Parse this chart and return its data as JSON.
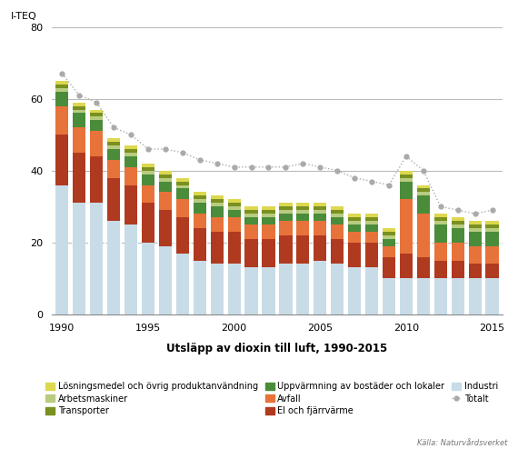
{
  "years": [
    1990,
    1991,
    1992,
    1993,
    1994,
    1995,
    1996,
    1997,
    1998,
    1999,
    2000,
    2001,
    2002,
    2003,
    2004,
    2005,
    2006,
    2007,
    2008,
    2009,
    2010,
    2011,
    2012,
    2013,
    2014,
    2015
  ],
  "industri": [
    36,
    31,
    31,
    26,
    25,
    20,
    19,
    17,
    15,
    14,
    14,
    13,
    13,
    14,
    14,
    15,
    14,
    13,
    13,
    10,
    10,
    10,
    10,
    10,
    10,
    10
  ],
  "el_fjarrvarme": [
    14,
    14,
    13,
    12,
    11,
    11,
    10,
    10,
    9,
    9,
    9,
    8,
    8,
    8,
    8,
    7,
    7,
    7,
    7,
    6,
    7,
    6,
    5,
    5,
    4,
    4
  ],
  "avfall": [
    8,
    7,
    7,
    5,
    5,
    5,
    5,
    5,
    4,
    4,
    4,
    4,
    4,
    4,
    4,
    4,
    4,
    3,
    3,
    3,
    15,
    12,
    5,
    5,
    5,
    5
  ],
  "uppvarmning": [
    4,
    4,
    3,
    3,
    3,
    3,
    3,
    3,
    3,
    3,
    2,
    2,
    2,
    2,
    2,
    2,
    2,
    2,
    2,
    2,
    5,
    5,
    5,
    4,
    4,
    4
  ],
  "arbetsmaskiner": [
    1,
    1,
    1,
    1,
    1,
    1,
    1,
    1,
    1,
    1,
    1,
    1,
    1,
    1,
    1,
    1,
    1,
    1,
    1,
    1,
    1,
    1,
    1,
    1,
    1,
    1
  ],
  "transporter": [
    1,
    1,
    1,
    1,
    1,
    1,
    1,
    1,
    1,
    1,
    1,
    1,
    1,
    1,
    1,
    1,
    1,
    1,
    1,
    1,
    1,
    1,
    1,
    1,
    1,
    1
  ],
  "losningsmedel": [
    1,
    1,
    1,
    1,
    1,
    1,
    1,
    1,
    1,
    1,
    1,
    1,
    1,
    1,
    1,
    1,
    1,
    1,
    1,
    1,
    1,
    1,
    1,
    1,
    1,
    1
  ],
  "totalt": [
    67,
    61,
    59,
    52,
    50,
    46,
    46,
    45,
    43,
    42,
    41,
    41,
    41,
    41,
    42,
    41,
    40,
    38,
    37,
    36,
    44,
    40,
    30,
    29,
    28,
    29
  ],
  "color_industri": "#c8dce8",
  "color_el_fjarrvarme": "#b03a20",
  "color_avfall": "#e8733a",
  "color_uppvarmning": "#4a8c3a",
  "color_arbetsmaskiner": "#b8cc80",
  "color_transporter": "#7a9020",
  "color_losningsmedel": "#ddd850",
  "color_totalt": "#aaaaaa",
  "xlabel": "Utsläpp av dioxin till luft, 1990-2015",
  "ylabel": "I-TEQ",
  "ylim": [
    0,
    80
  ],
  "yticks": [
    0,
    20,
    40,
    60,
    80
  ],
  "source": "Källa: Naturvårdsverket",
  "legend_losningsmedel": "Lösningsmedel och övrig produktanvändning",
  "legend_arbetsmaskiner": "Arbetsmaskiner",
  "legend_transporter": "Transporter",
  "legend_uppvarmning": "Uppvärmning av bostäder och lokaler",
  "legend_avfall": "Avfall",
  "legend_el_fjarrvarme": "El och fjärrvärme",
  "legend_industri": "Industri",
  "legend_totalt": "Totalt"
}
